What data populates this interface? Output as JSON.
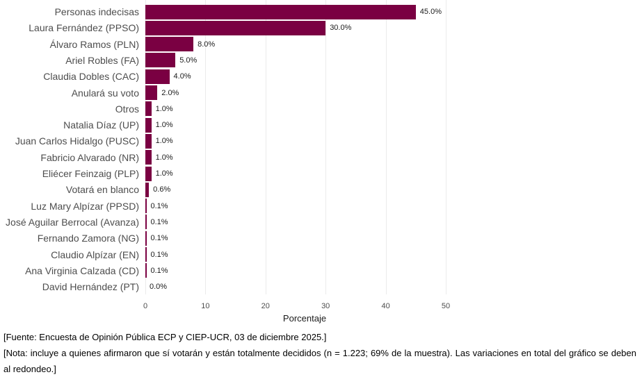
{
  "chart_data": {
    "type": "bar",
    "orientation": "horizontal",
    "title": "",
    "xlabel": "Porcentaje",
    "ylabel": "",
    "xlim": [
      0,
      50
    ],
    "xticks": [
      0,
      10,
      20,
      30,
      40,
      50
    ],
    "grid": true,
    "bar_color": "#7a0042",
    "categories": [
      "Personas indecisas",
      "Laura Fernández (PPSO)",
      "Álvaro Ramos (PLN)",
      "Ariel Robles (FA)",
      "Claudia Dobles (CAC)",
      "Anulará su voto",
      "Otros",
      "Natalia Díaz (UP)",
      "Juan Carlos Hidalgo (PUSC)",
      "Fabricio Alvarado (NR)",
      "Eliécer Feinzaig (PLP)",
      "Votará en blanco",
      "Luz Mary Alpízar (PPSD)",
      "José Aguilar Berrocal (Avanza)",
      "Fernando Zamora (NG)",
      "Claudio Alpízar (EN)",
      "Ana Virginia Calzada (CD)",
      "David Hernández (PT)"
    ],
    "values": [
      45.0,
      30.0,
      8.0,
      5.0,
      4.0,
      2.0,
      1.0,
      1.0,
      1.0,
      1.0,
      1.0,
      0.6,
      0.1,
      0.1,
      0.1,
      0.1,
      0.1,
      0.0
    ],
    "labels": [
      "45.0%",
      "30.0%",
      "8.0%",
      "5.0%",
      "4.0%",
      "2.0%",
      "1.0%",
      "1.0%",
      "1.0%",
      "1.0%",
      "1.0%",
      "0.6%",
      "0.1%",
      "0.1%",
      "0.1%",
      "0.1%",
      "0.1%",
      "0.0%"
    ]
  },
  "footer": {
    "source": "[Fuente: Encuesta de Opinión Pública ECP y CIEP-UCR, 03 de diciembre 2025.]",
    "note": "[Nota: incluye a quienes afirmaron que sí votarán y están totalmente decididos (n = 1.223; 69% de la muestra). Las variaciones en total del gráfico se deben al redondeo.]"
  }
}
